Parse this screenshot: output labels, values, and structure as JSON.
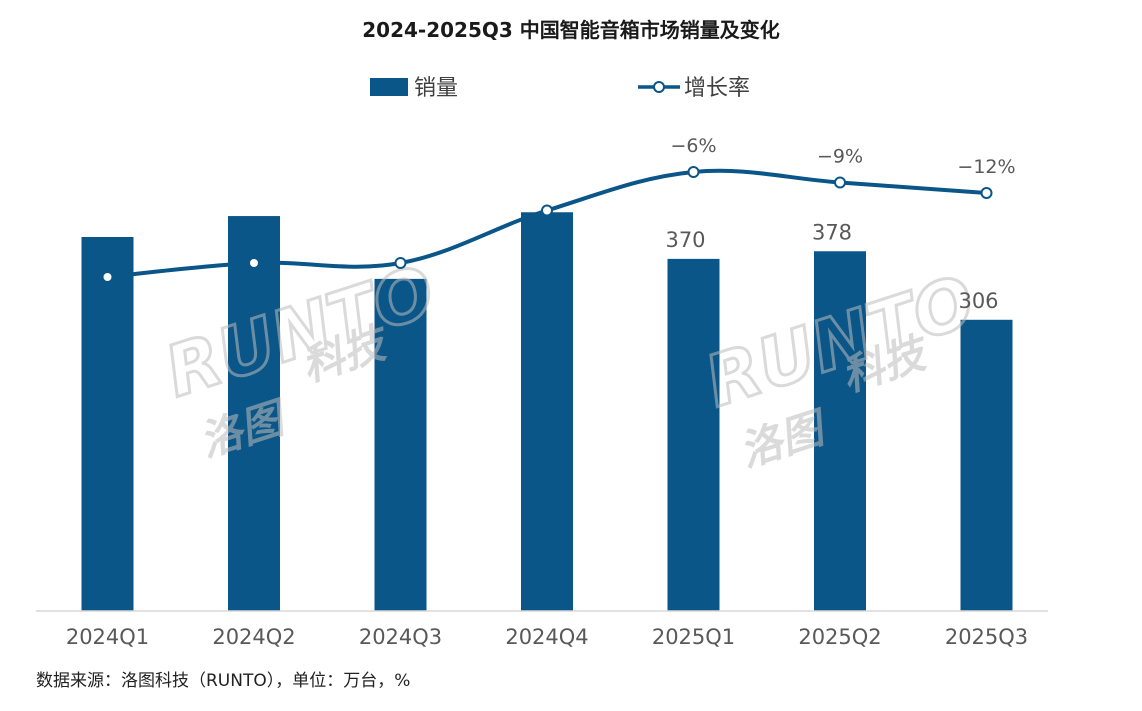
{
  "colors": {
    "bar": "#0a5688",
    "line": "#0a5688",
    "marker_fill": "#ffffff",
    "axis": "#d9d9d9",
    "tick_text": "#595959",
    "label_text": "#595959",
    "watermark": "#bdbdbd"
  },
  "watermarks": [
    {
      "latin": "RUNTO",
      "cjk_left": "洛图",
      "cjk_right": "科技"
    },
    {
      "latin": "RUNTO",
      "cjk_left": "洛图",
      "cjk_right": "科技"
    }
  ],
  "source": "数据来源：洛图科技（RUNTO），单位：万台，%",
  "chart_data": {
    "type": "bar",
    "title": "2024-2025Q3 中国智能音箱市场销量及变化",
    "legend_position": "top-center",
    "grid": false,
    "categories": [
      "2024Q1",
      "2024Q2",
      "2024Q3",
      "2024Q4",
      "2025Q1",
      "2025Q2",
      "2025Q3"
    ],
    "bar_ylim": [
      0,
      600
    ],
    "line_ylim": [
      -60,
      10
    ],
    "series": [
      {
        "name": "销量",
        "type": "bar",
        "values": [
          393,
          415,
          349,
          419,
          370,
          378,
          306
        ],
        "labels": [
          "",
          "",
          "",
          "",
          "370",
          "378",
          "306"
        ]
      },
      {
        "name": "增长率",
        "type": "line",
        "values": [
          -36,
          -32,
          -32,
          -17,
          -6,
          -9,
          -12
        ],
        "labels": [
          "",
          "",
          "",
          "",
          "−6%",
          "−9%",
          "−12%"
        ]
      }
    ]
  }
}
